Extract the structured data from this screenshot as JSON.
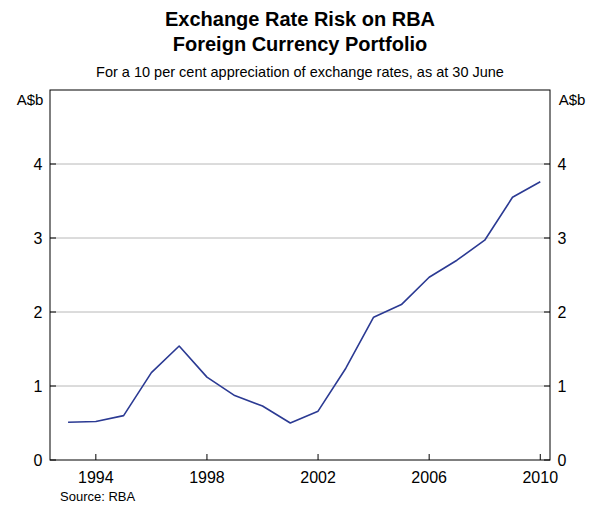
{
  "chart_data": {
    "type": "line",
    "title": [
      "Exchange Rate Risk on RBA",
      "Foreign Currency Portfolio"
    ],
    "subtitle": "For a 10 per cent appreciation of exchange rates, as at 30 June",
    "y_label": "A$b",
    "source": "Source: RBA",
    "x": [
      1993,
      1994,
      1995,
      1996,
      1997,
      1998,
      1999,
      2000,
      2001,
      2002,
      2003,
      2004,
      2005,
      2006,
      2007,
      2008,
      2009,
      2010
    ],
    "series": [
      {
        "name": "Exchange rate risk",
        "color": "#2b3a93",
        "values": [
          0.51,
          0.52,
          0.6,
          1.18,
          1.54,
          1.12,
          0.87,
          0.73,
          0.5,
          0.66,
          1.24,
          1.93,
          2.1,
          2.47,
          2.7,
          2.97,
          3.55,
          3.76
        ]
      }
    ],
    "xlim": [
      1992.35,
      2010.35
    ],
    "xticks": [
      1994,
      1998,
      2002,
      2006,
      2010
    ],
    "ylim": [
      0,
      5
    ],
    "yticks": [
      0,
      1,
      2,
      3,
      4
    ],
    "grid": true
  }
}
